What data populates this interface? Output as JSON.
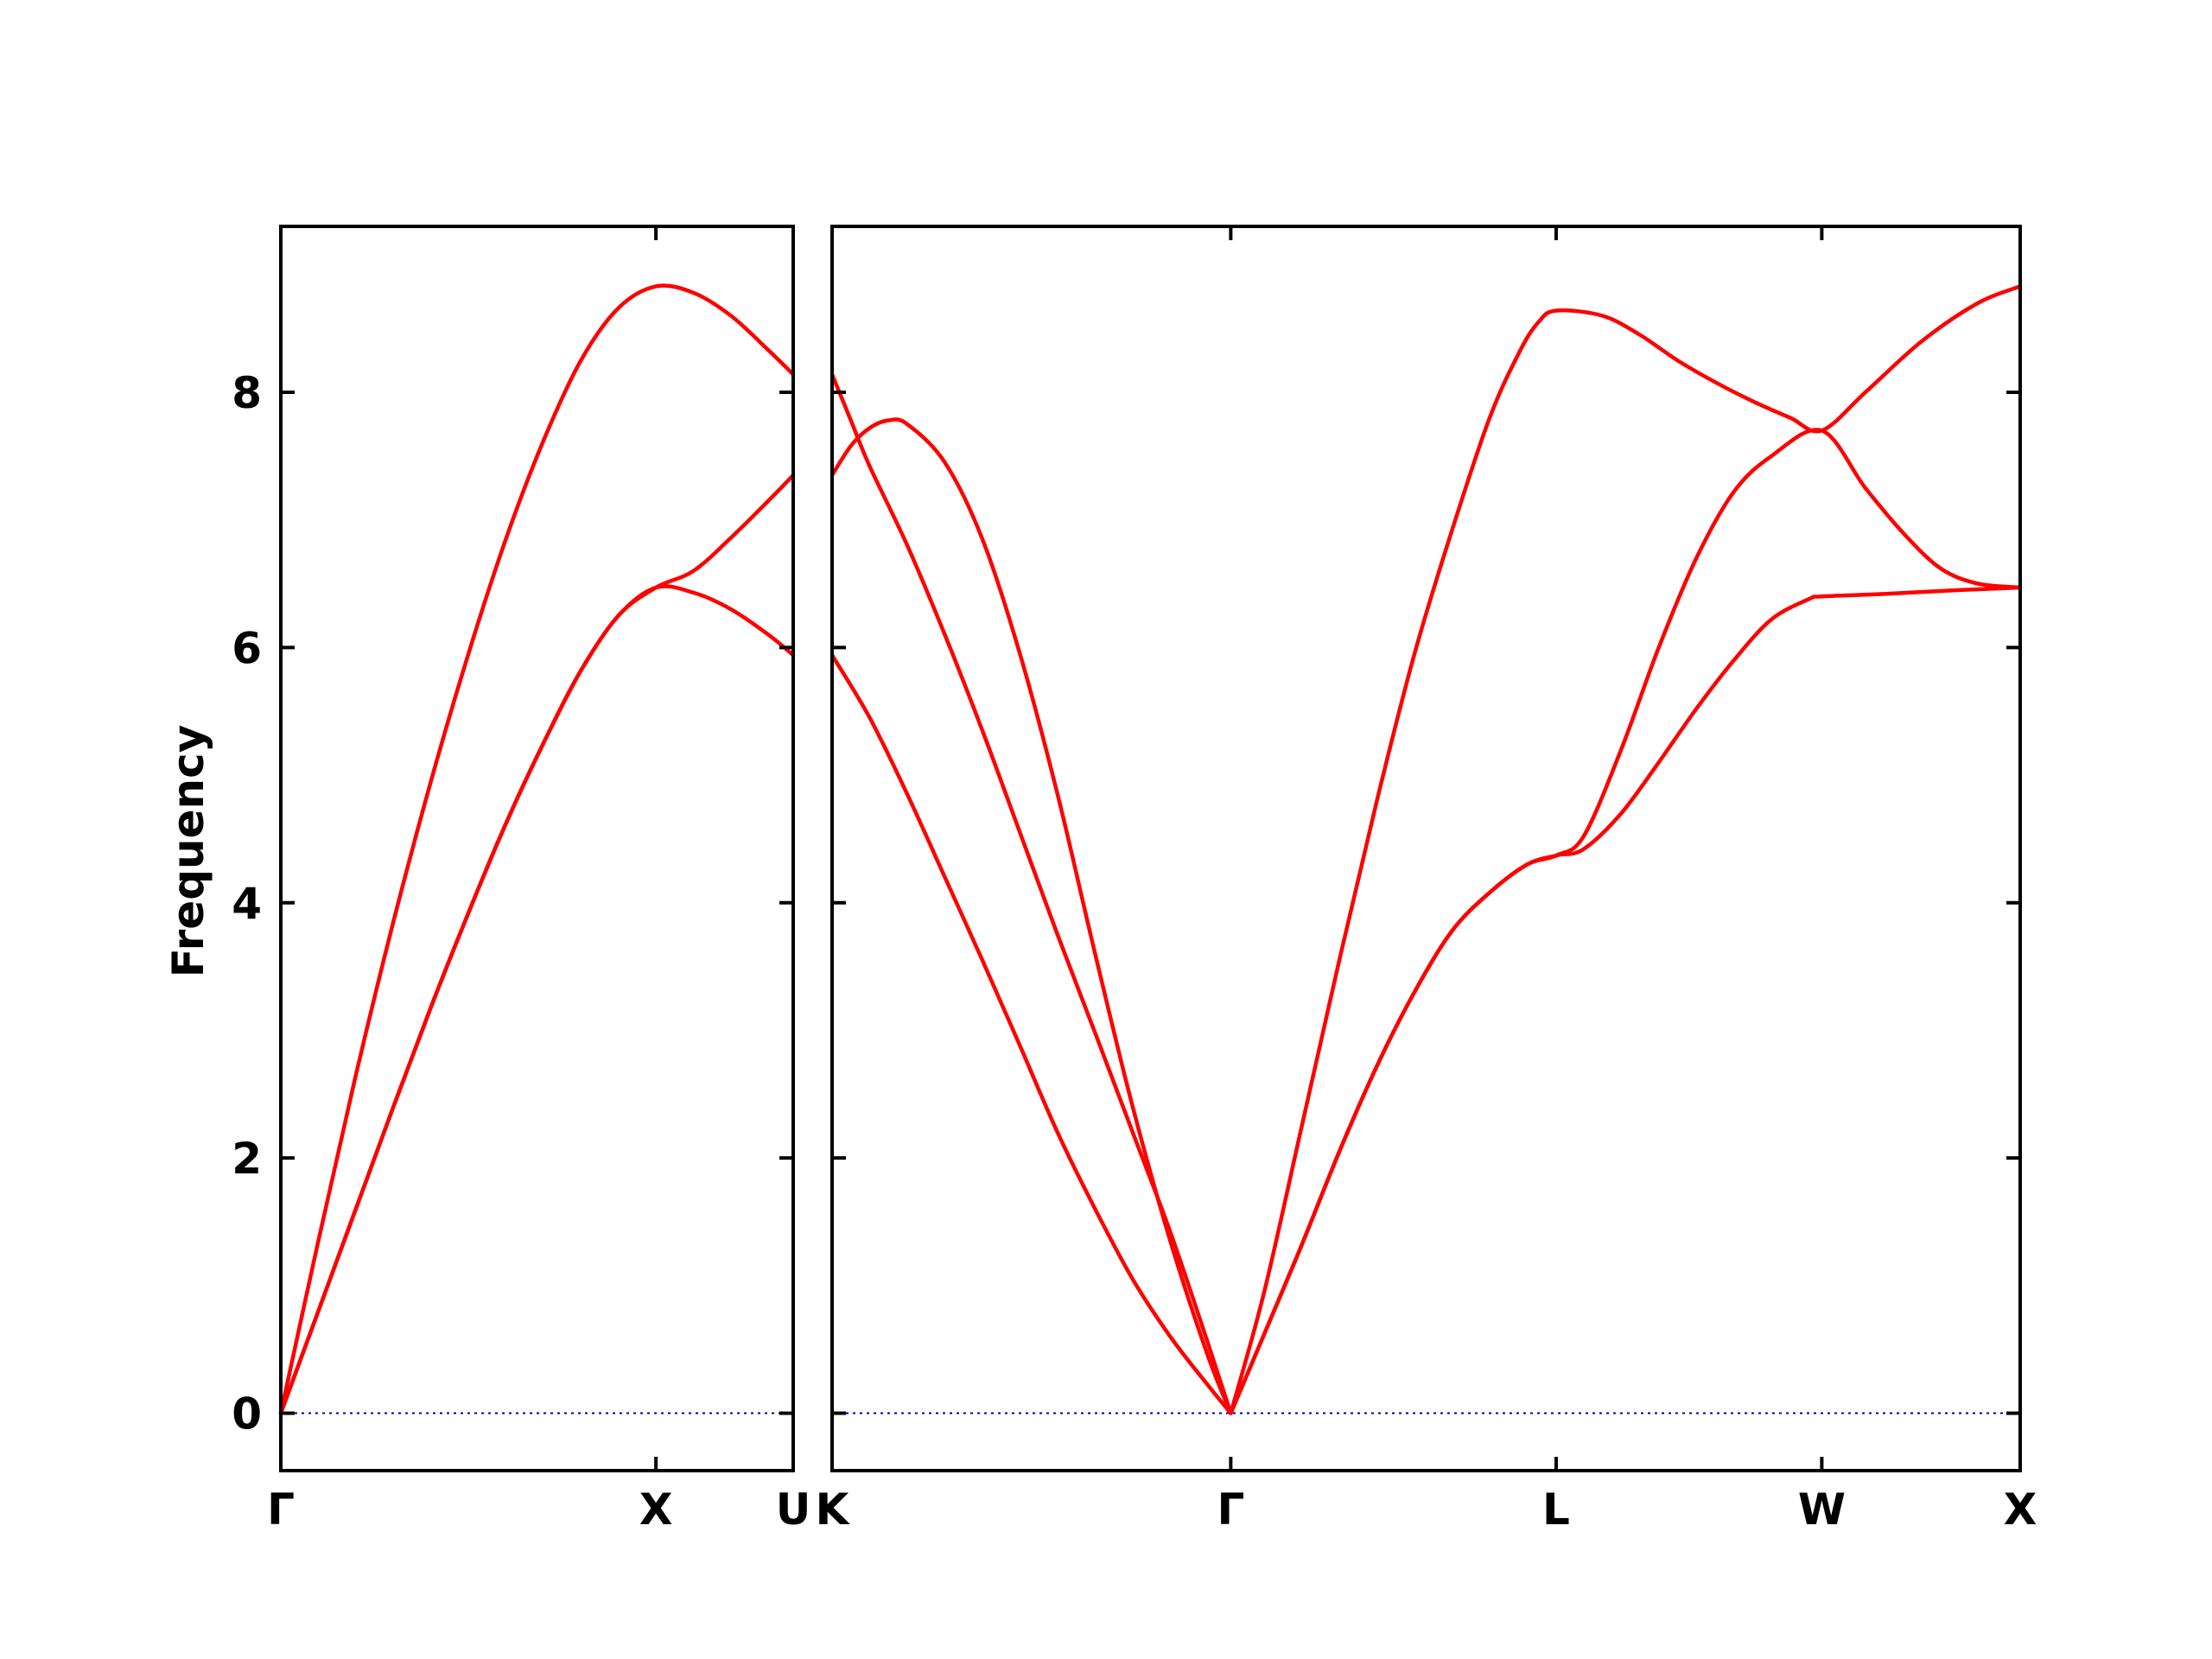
{
  "chart_data": {
    "type": "line",
    "title": "",
    "ylabel": "Frequency",
    "ylim": [
      -0.45,
      9.3
    ],
    "yticks": [
      0,
      2,
      4,
      6,
      8
    ],
    "band_color": "#ff0000",
    "zero_line_color": "#0000aa",
    "panels": [
      {
        "xlim": [
          0,
          1.366
        ],
        "xticks": [
          {
            "x": 0,
            "label": "Γ"
          },
          {
            "x": 1.0,
            "label": "X"
          },
          {
            "x": 1.366,
            "label": "U"
          }
        ],
        "series": [
          {
            "points": [
              [
                0,
                0
              ],
              [
                0.1,
                1.35
              ],
              [
                0.2,
                2.65
              ],
              [
                0.3,
                3.85
              ],
              [
                0.4,
                4.95
              ],
              [
                0.5,
                5.95
              ],
              [
                0.6,
                6.85
              ],
              [
                0.7,
                7.62
              ],
              [
                0.8,
                8.25
              ],
              [
                0.9,
                8.66
              ],
              [
                1.0,
                8.83
              ],
              [
                1.1,
                8.78
              ],
              [
                1.2,
                8.6
              ],
              [
                1.3,
                8.33
              ],
              [
                1.366,
                8.14
              ]
            ]
          },
          {
            "points": [
              [
                0,
                0
              ],
              [
                0.1,
                0.8
              ],
              [
                0.2,
                1.6
              ],
              [
                0.3,
                2.4
              ],
              [
                0.4,
                3.18
              ],
              [
                0.5,
                3.92
              ],
              [
                0.6,
                4.62
              ],
              [
                0.7,
                5.25
              ],
              [
                0.8,
                5.82
              ],
              [
                0.9,
                6.25
              ],
              [
                1.0,
                6.47
              ],
              [
                1.1,
                6.6
              ],
              [
                1.2,
                6.86
              ],
              [
                1.3,
                7.15
              ],
              [
                1.366,
                7.35
              ]
            ]
          },
          {
            "points": [
              [
                0,
                0
              ],
              [
                0.1,
                0.8
              ],
              [
                0.2,
                1.6
              ],
              [
                0.3,
                2.4
              ],
              [
                0.4,
                3.18
              ],
              [
                0.5,
                3.92
              ],
              [
                0.6,
                4.62
              ],
              [
                0.7,
                5.25
              ],
              [
                0.8,
                5.82
              ],
              [
                0.9,
                6.25
              ],
              [
                1.0,
                6.47
              ],
              [
                1.1,
                6.43
              ],
              [
                1.2,
                6.3
              ],
              [
                1.3,
                6.1
              ],
              [
                1.366,
                5.94
              ]
            ]
          }
        ]
      },
      {
        "xlim": [
          0,
          3.162
        ],
        "xticks": [
          {
            "x": 0,
            "label": "K"
          },
          {
            "x": 1.061,
            "label": "Γ"
          },
          {
            "x": 1.927,
            "label": "L"
          },
          {
            "x": 2.634,
            "label": "W"
          },
          {
            "x": 3.162,
            "label": "X"
          }
        ],
        "series": [
          {
            "points": [
              [
                0,
                8.14
              ],
              [
                0.05,
                7.78
              ],
              [
                0.1,
                7.42
              ],
              [
                0.2,
                6.8
              ],
              [
                0.3,
                6.1
              ],
              [
                0.4,
                5.35
              ],
              [
                0.5,
                4.55
              ],
              [
                0.6,
                3.75
              ],
              [
                0.7,
                2.98
              ],
              [
                0.8,
                2.2
              ],
              [
                0.9,
                1.42
              ],
              [
                1.0,
                0.55
              ],
              [
                1.061,
                0
              ]
            ]
          },
          {
            "points": [
              [
                0,
                7.35
              ],
              [
                0.05,
                7.58
              ],
              [
                0.1,
                7.72
              ],
              [
                0.15,
                7.78
              ],
              [
                0.2,
                7.75
              ],
              [
                0.3,
                7.45
              ],
              [
                0.4,
                6.85
              ],
              [
                0.5,
                5.95
              ],
              [
                0.6,
                4.85
              ],
              [
                0.7,
                3.6
              ],
              [
                0.8,
                2.4
              ],
              [
                0.9,
                1.35
              ],
              [
                1.0,
                0.45
              ],
              [
                1.061,
                0
              ]
            ]
          },
          {
            "points": [
              [
                0,
                5.94
              ],
              [
                0.1,
                5.45
              ],
              [
                0.2,
                4.85
              ],
              [
                0.3,
                4.2
              ],
              [
                0.4,
                3.55
              ],
              [
                0.5,
                2.88
              ],
              [
                0.6,
                2.2
              ],
              [
                0.7,
                1.6
              ],
              [
                0.8,
                1.05
              ],
              [
                0.9,
                0.6
              ],
              [
                1.0,
                0.22
              ],
              [
                1.061,
                0
              ]
            ]
          },
          {
            "points": [
              [
                1.061,
                0
              ],
              [
                1.15,
                0.95
              ],
              [
                1.25,
                2.25
              ],
              [
                1.35,
                3.55
              ],
              [
                1.45,
                4.8
              ],
              [
                1.55,
                5.95
              ],
              [
                1.65,
                6.92
              ],
              [
                1.75,
                7.8
              ],
              [
                1.83,
                8.32
              ],
              [
                1.88,
                8.55
              ],
              [
                1.927,
                8.64
              ],
              [
                2.05,
                8.6
              ],
              [
                2.15,
                8.45
              ],
              [
                2.25,
                8.25
              ],
              [
                2.35,
                8.08
              ],
              [
                2.45,
                7.93
              ],
              [
                2.55,
                7.8
              ],
              [
                2.634,
                7.7
              ],
              [
                2.75,
                8.0
              ],
              [
                2.9,
                8.4
              ],
              [
                3.05,
                8.7
              ],
              [
                3.162,
                8.83
              ]
            ]
          },
          {
            "points": [
              [
                1.061,
                0
              ],
              [
                1.15,
                0.62
              ],
              [
                1.25,
                1.32
              ],
              [
                1.35,
                2.05
              ],
              [
                1.45,
                2.72
              ],
              [
                1.55,
                3.3
              ],
              [
                1.65,
                3.78
              ],
              [
                1.75,
                4.08
              ],
              [
                1.85,
                4.3
              ],
              [
                1.927,
                4.37
              ],
              [
                2.0,
                4.52
              ],
              [
                2.1,
                5.2
              ],
              [
                2.2,
                6.0
              ],
              [
                2.3,
                6.7
              ],
              [
                2.4,
                7.22
              ],
              [
                2.5,
                7.5
              ],
              [
                2.634,
                7.7
              ],
              [
                2.75,
                7.25
              ],
              [
                2.85,
                6.9
              ],
              [
                2.95,
                6.62
              ],
              [
                3.05,
                6.5
              ],
              [
                3.162,
                6.47
              ]
            ]
          },
          {
            "points": [
              [
                1.061,
                0
              ],
              [
                1.15,
                0.62
              ],
              [
                1.25,
                1.32
              ],
              [
                1.35,
                2.05
              ],
              [
                1.45,
                2.72
              ],
              [
                1.55,
                3.3
              ],
              [
                1.65,
                3.78
              ],
              [
                1.75,
                4.08
              ],
              [
                1.85,
                4.3
              ],
              [
                1.927,
                4.37
              ],
              [
                2.0,
                4.42
              ],
              [
                2.1,
                4.7
              ],
              [
                2.2,
                5.1
              ],
              [
                2.3,
                5.52
              ],
              [
                2.4,
                5.9
              ],
              [
                2.5,
                6.22
              ],
              [
                2.6,
                6.38
              ],
              [
                2.634,
                6.4
              ],
              [
                2.8,
                6.42
              ],
              [
                3.0,
                6.45
              ],
              [
                3.162,
                6.47
              ]
            ]
          }
        ]
      }
    ]
  }
}
